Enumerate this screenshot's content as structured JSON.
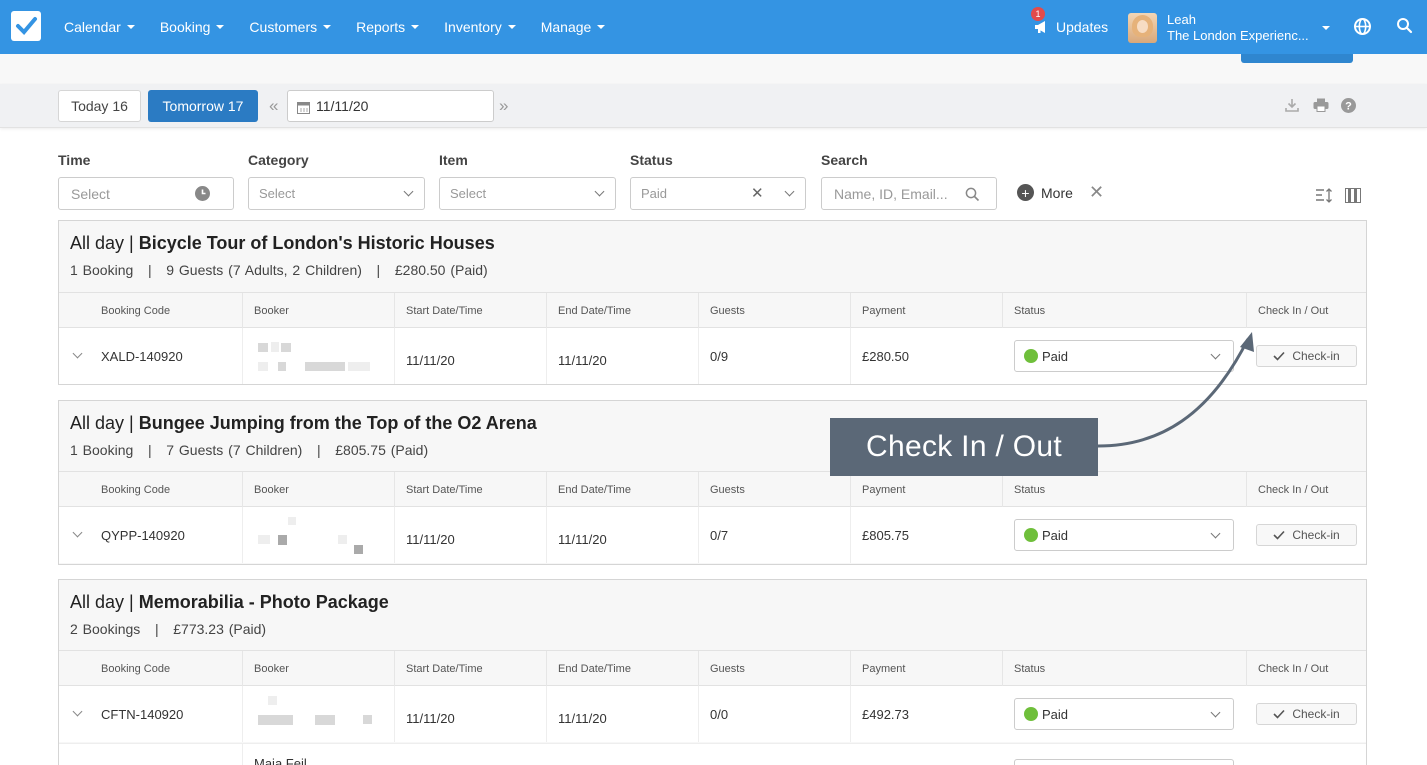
{
  "nav": {
    "menu": [
      "Calendar",
      "Booking",
      "Customers",
      "Reports",
      "Inventory",
      "Manage"
    ],
    "updates_label": "Updates",
    "updates_count": "1",
    "user_name": "Leah",
    "user_company": "The London Experienc..."
  },
  "datebar": {
    "today": "Today 16",
    "tomorrow": "Tomorrow 17",
    "prev": "«",
    "next": "»",
    "date": "11/11/20"
  },
  "filters": {
    "time_label": "Time",
    "time_placeholder": "Select",
    "category_label": "Category",
    "category_placeholder": "Select",
    "item_label": "Item",
    "item_placeholder": "Select",
    "status_label": "Status",
    "status_value": "Paid",
    "search_label": "Search",
    "search_placeholder": "Name, ID, Email...",
    "more": "More"
  },
  "columns": [
    "Booking Code",
    "Booker",
    "Start Date/Time",
    "End Date/Time",
    "Guests",
    "Payment",
    "Status",
    "Check In / Out"
  ],
  "groups": [
    {
      "time": "All day |",
      "name": "Bicycle Tour of London's Historic Houses",
      "summary": "1 Booking   |   9 Guests (7 Adults, 2 Children)   |   £280.50 (Paid)",
      "rows": [
        {
          "code": "XALD-140920",
          "start": "11/11/20",
          "end": "11/11/20",
          "guests": "0/9",
          "payment": "£280.50",
          "status": "Paid",
          "checkin": "Check-in"
        }
      ]
    },
    {
      "time": "All day |",
      "name": "Bungee Jumping from the Top of the O2 Arena",
      "summary": "1 Booking   |   7 Guests (7 Children)   |   £805.75 (Paid)",
      "rows": [
        {
          "code": "QYPP-140920",
          "start": "11/11/20",
          "end": "11/11/20",
          "guests": "0/7",
          "payment": "£805.75",
          "status": "Paid",
          "checkin": "Check-in"
        }
      ]
    },
    {
      "time": "All day |",
      "name": "Memorabilia - Photo Package",
      "summary": "2 Bookings   |   £773.23 (Paid)",
      "rows": [
        {
          "code": "CFTN-140920",
          "start": "11/11/20",
          "end": "11/11/20",
          "guests": "0/0",
          "payment": "£492.73",
          "status": "Paid",
          "checkin": "Check-in"
        },
        {
          "booker": "Maia Feil"
        }
      ]
    }
  ],
  "annotation": "Check In / Out",
  "colors": {
    "nav": "#3494e3",
    "primary": "#2b7bc3",
    "paid": "#6fbf3b",
    "callout": "#5b6877"
  }
}
